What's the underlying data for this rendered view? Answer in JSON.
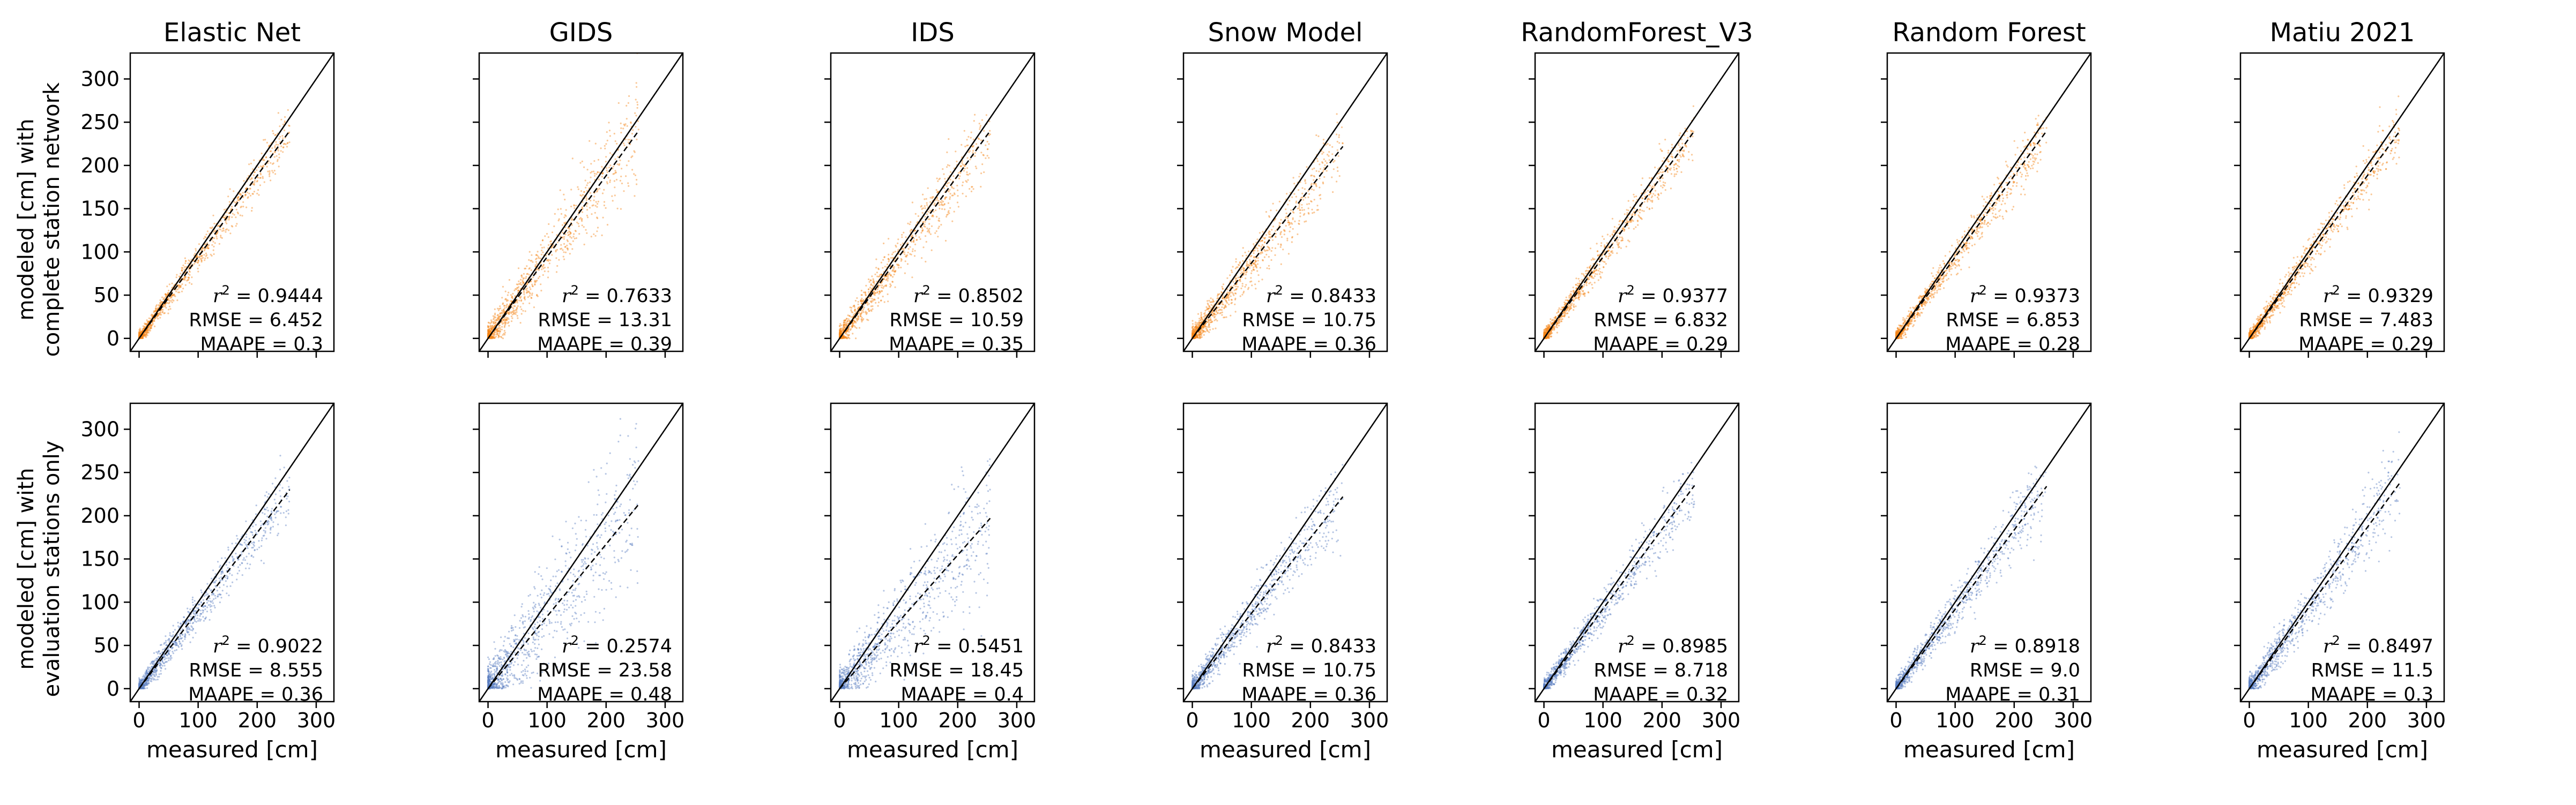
{
  "figure": {
    "x_axis_label": "measured [cm]",
    "row_labels": [
      [
        "modeled [cm] with",
        "complete station network"
      ],
      [
        "modeled [cm] with",
        "evaluation stations only"
      ]
    ],
    "colors": {
      "row1_points": "#f58518",
      "row2_points": "#5b7fc0",
      "lines": "#000000"
    }
  },
  "chart_data": {
    "type": "scatter",
    "xlim": [
      -15,
      330
    ],
    "ylim": [
      -15,
      330
    ],
    "x_ticks": [
      0,
      100,
      200,
      300
    ],
    "y_ticks": [
      0,
      50,
      100,
      150,
      200,
      250,
      300
    ],
    "grid": false,
    "reference_line": "y = x (solid)",
    "fit_line": "least-squares fit (dashed)",
    "models": [
      "Elastic Net",
      "GIDS",
      "IDS",
      "Snow Model",
      "RandomForest_V3",
      "Random Forest",
      "Matiu 2021"
    ],
    "panels": [
      {
        "row": 1,
        "model": "Elastic Net",
        "r2": "0.9444",
        "rmse": "6.452",
        "maape": "0.3",
        "fit_end": [
          255,
          240
        ]
      },
      {
        "row": 1,
        "model": "GIDS",
        "r2": "0.7633",
        "rmse": "13.31",
        "maape": "0.39",
        "fit_end": [
          255,
          240
        ]
      },
      {
        "row": 1,
        "model": "IDS",
        "r2": "0.8502",
        "rmse": "10.59",
        "maape": "0.35",
        "fit_end": [
          255,
          240
        ]
      },
      {
        "row": 1,
        "model": "Snow Model",
        "r2": "0.8433",
        "rmse": "10.75",
        "maape": "0.36",
        "fit_end": [
          255,
          222
        ]
      },
      {
        "row": 1,
        "model": "RandomForest_V3",
        "r2": "0.9377",
        "rmse": "6.832",
        "maape": "0.29",
        "fit_end": [
          255,
          240
        ]
      },
      {
        "row": 1,
        "model": "Random Forest",
        "r2": "0.9373",
        "rmse": "6.853",
        "maape": "0.28",
        "fit_end": [
          255,
          240
        ]
      },
      {
        "row": 1,
        "model": "Matiu 2021",
        "r2": "0.9329",
        "rmse": "7.483",
        "maape": "0.29",
        "fit_end": [
          255,
          240
        ]
      },
      {
        "row": 2,
        "model": "Elastic Net",
        "r2": "0.9022",
        "rmse": "8.555",
        "maape": "0.36",
        "fit_end": [
          255,
          230
        ]
      },
      {
        "row": 2,
        "model": "GIDS",
        "r2": "0.2574",
        "rmse": "23.58",
        "maape": "0.48",
        "fit_end": [
          255,
          213
        ]
      },
      {
        "row": 2,
        "model": "IDS",
        "r2": "0.5451",
        "rmse": "18.45",
        "maape": "0.4",
        "fit_end": [
          255,
          197
        ]
      },
      {
        "row": 2,
        "model": "Snow Model",
        "r2": "0.8433",
        "rmse": "10.75",
        "maape": "0.36",
        "fit_end": [
          255,
          222
        ]
      },
      {
        "row": 2,
        "model": "RandomForest_V3",
        "r2": "0.8985",
        "rmse": "8.718",
        "maape": "0.32",
        "fit_end": [
          255,
          235
        ]
      },
      {
        "row": 2,
        "model": "Random Forest",
        "r2": "0.8918",
        "rmse": "9.0",
        "maape": "0.31",
        "fit_end": [
          255,
          234
        ]
      },
      {
        "row": 2,
        "model": "Matiu 2021",
        "r2": "0.8497",
        "rmse": "11.5",
        "maape": "0.3",
        "fit_end": [
          255,
          238
        ]
      }
    ]
  }
}
